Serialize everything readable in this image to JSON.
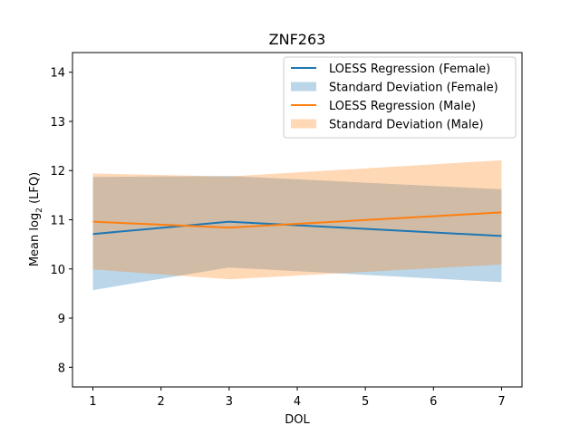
{
  "chart_data": {
    "type": "line",
    "title": "ZNF263",
    "xlabel": "DOL",
    "ylabel_main": "Mean log",
    "ylabel_sub": "2",
    "ylabel_tail": " (LFQ)",
    "xlim": [
      0.7,
      7.3
    ],
    "ylim": [
      7.6,
      14.4
    ],
    "x_ticks": [
      1,
      2,
      3,
      4,
      5,
      6,
      7
    ],
    "y_ticks": [
      8,
      9,
      10,
      11,
      12,
      13,
      14
    ],
    "grid": false,
    "legend_position": "top-right",
    "series": [
      {
        "name": "LOESS Regression (Female)",
        "kind": "line",
        "color": "#1f77b4",
        "x": [
          1,
          3,
          7
        ],
        "y": [
          10.71,
          10.96,
          10.67
        ]
      },
      {
        "name": "Standard Deviation (Female)",
        "kind": "band",
        "color": "#1f77b4",
        "opacity": 0.3,
        "x": [
          1,
          3,
          7
        ],
        "upper": [
          11.87,
          11.89,
          11.62
        ],
        "lower": [
          9.57,
          10.03,
          9.73
        ]
      },
      {
        "name": "LOESS Regression (Male)",
        "kind": "line",
        "color": "#ff7f0e",
        "x": [
          1,
          3,
          7
        ],
        "y": [
          10.96,
          10.84,
          11.15
        ]
      },
      {
        "name": "Standard Deviation (Male)",
        "kind": "band",
        "color": "#ff7f0e",
        "opacity": 0.3,
        "x": [
          1,
          3,
          7
        ],
        "upper": [
          11.94,
          11.88,
          12.21
        ],
        "lower": [
          9.99,
          9.79,
          10.09
        ]
      }
    ]
  }
}
